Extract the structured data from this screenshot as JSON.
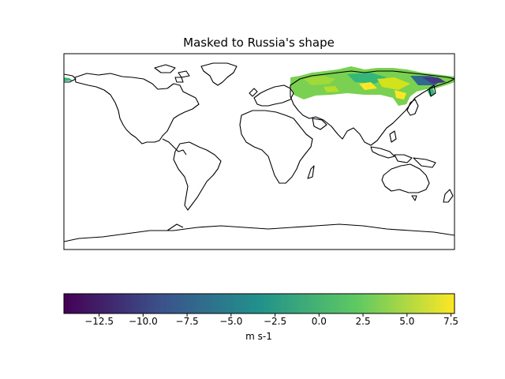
{
  "map": {
    "title": "Masked to Russia's shape",
    "projection": "PlateCarree",
    "extent": {
      "lon": [
        -180,
        180
      ],
      "lat": [
        -90,
        90
      ]
    },
    "masked_region": "Russia",
    "field_range": {
      "min": -14.5,
      "max": 7.7
    }
  },
  "colorbar": {
    "label": "m s-1",
    "colormap": "viridis",
    "range": [
      -14.5,
      7.7
    ],
    "ticks": [
      -12.5,
      -10.0,
      -7.5,
      -5.0,
      -2.5,
      0.0,
      2.5,
      5.0,
      7.5
    ],
    "tick_labels": [
      "−12.5",
      "−10.0",
      "−7.5",
      "−5.0",
      "−2.5",
      "0.0",
      "2.5",
      "5.0",
      "7.5"
    ],
    "colors": [
      "#440154",
      "#3b528b",
      "#21918c",
      "#5ec962",
      "#fde725"
    ]
  }
}
